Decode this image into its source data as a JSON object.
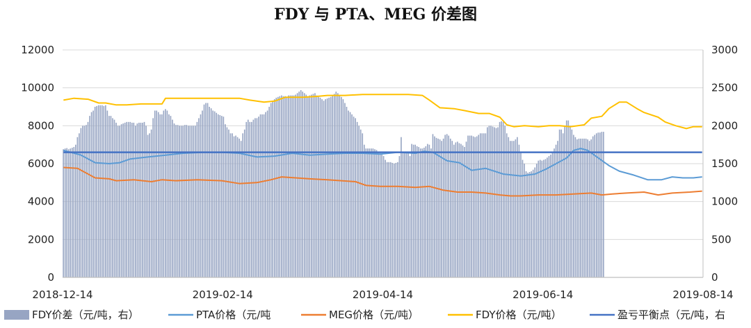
{
  "chart_data": {
    "type": "bar+line",
    "title": "FDY 与 PTA、MEG 价差图",
    "x_ticks": [
      "2018-12-14",
      "2019-02-14",
      "2019-04-14",
      "2019-06-14",
      "2019-08-14"
    ],
    "y_left": {
      "min": 0,
      "max": 12000,
      "ticks": [
        0,
        2000,
        4000,
        6000,
        8000,
        10000,
        12000
      ]
    },
    "y_right": {
      "min": 0,
      "max": 3000,
      "ticks": [
        0,
        500,
        1000,
        1500,
        2000,
        2500,
        3000
      ]
    },
    "grid": true,
    "legend_position": "bottom",
    "series": [
      {
        "name": "FDY价差（元/吨，右）",
        "type": "bar",
        "axis": "right",
        "color": "#97a5c3",
        "values": [
          1690,
          1700,
          1705,
          1690,
          1700,
          1710,
          1720,
          1750,
          1850,
          1900,
          1970,
          2000,
          2000,
          2010,
          2050,
          2130,
          2180,
          2200,
          2250,
          2260,
          2270,
          2270,
          2270,
          2260,
          2270,
          2200,
          2130,
          2130,
          2100,
          2080,
          2040,
          2000,
          2000,
          2020,
          2030,
          2040,
          2050,
          2050,
          2050,
          2040,
          2040,
          2000,
          2030,
          2040,
          2040,
          2040,
          2050,
          2000,
          1880,
          1900,
          1950,
          2100,
          2200,
          2200,
          2180,
          2150,
          2150,
          2200,
          2220,
          2200,
          2150,
          2130,
          2080,
          2030,
          2010,
          2010,
          2000,
          2000,
          2000,
          2010,
          2010,
          2000,
          2000,
          2000,
          2000,
          2000,
          2050,
          2100,
          2150,
          2200,
          2280,
          2300,
          2300,
          2250,
          2230,
          2200,
          2190,
          2170,
          2150,
          2140,
          2130,
          2120,
          2020,
          1980,
          1950,
          1900,
          1900,
          1860,
          1870,
          1850,
          1830,
          1800,
          1900,
          1950,
          2050,
          2080,
          2050,
          2050,
          2080,
          2100,
          2100,
          2120,
          2150,
          2150,
          2150,
          2180,
          2200,
          2250,
          2300,
          2320,
          2350,
          2370,
          2380,
          2390,
          2400,
          2390,
          2390,
          2380,
          2400,
          2400,
          2400,
          2400,
          2410,
          2430,
          2450,
          2470,
          2450,
          2430,
          2410,
          2390,
          2400,
          2410,
          2420,
          2430,
          2400,
          2380,
          2370,
          2350,
          2330,
          2350,
          2360,
          2370,
          2380,
          2400,
          2420,
          2450,
          2430,
          2400,
          2380,
          2350,
          2300,
          2250,
          2200,
          2180,
          2150,
          2120,
          2100,
          2050,
          2000,
          1950,
          1900,
          1750,
          1700,
          1700,
          1700,
          1700,
          1700,
          1690,
          1680,
          1660,
          1640,
          1620,
          1600,
          1550,
          1520,
          1520,
          1520,
          1510,
          1500,
          1510,
          1520,
          1600,
          1850,
          1640,
          1650,
          1650,
          1650,
          1600,
          1760,
          1750,
          1750,
          1730,
          1720,
          1700,
          1700,
          1710,
          1730,
          1760,
          1750,
          1700,
          1890,
          1860,
          1840,
          1830,
          1820,
          1800,
          1830,
          1880,
          1890,
          1870,
          1830,
          1800,
          1750,
          1780,
          1790,
          1770,
          1760,
          1740,
          1720,
          1790,
          1870,
          1870,
          1870,
          1860,
          1850,
          1860,
          1880,
          1900,
          1900,
          1900,
          1900,
          1980,
          2000,
          2000,
          1990,
          1980,
          1970,
          1980,
          2050,
          2060,
          2050,
          2000,
          1900,
          1850,
          1800,
          1800,
          1800,
          1820,
          1850,
          1750,
          1650,
          1550,
          1500,
          1400,
          1380,
          1390,
          1400,
          1420,
          1450,
          1500,
          1540,
          1550,
          1540,
          1550,
          1560,
          1580,
          1600,
          1620,
          1650,
          1700,
          1750,
          1800,
          1950,
          1950,
          1900,
          2000,
          2070,
          2070,
          2000,
          1950,
          1880,
          1850,
          1820,
          1830,
          1830,
          1830,
          1830,
          1830,
          1820,
          1800,
          1820,
          1860,
          1880,
          1900,
          1910,
          1910,
          1920,
          1920
        ]
      },
      {
        "name": "PTA价格（元/吨",
        "type": "line",
        "axis": "left",
        "color": "#5b9bd5",
        "points": [
          [
            0,
            6700
          ],
          [
            10,
            6450
          ],
          [
            18,
            6050
          ],
          [
            26,
            6000
          ],
          [
            32,
            6050
          ],
          [
            38,
            6250
          ],
          [
            48,
            6350
          ],
          [
            58,
            6450
          ],
          [
            68,
            6550
          ],
          [
            80,
            6600
          ],
          [
            90,
            6600
          ],
          [
            100,
            6550
          ],
          [
            110,
            6350
          ],
          [
            120,
            6400
          ],
          [
            130,
            6550
          ],
          [
            140,
            6450
          ],
          [
            150,
            6500
          ],
          [
            160,
            6550
          ],
          [
            170,
            6550
          ],
          [
            180,
            6500
          ],
          [
            190,
            6600
          ],
          [
            200,
            6550
          ],
          [
            205,
            6650
          ],
          [
            210,
            6600
          ],
          [
            218,
            6150
          ],
          [
            225,
            6050
          ],
          [
            232,
            5650
          ],
          [
            240,
            5750
          ],
          [
            250,
            5450
          ],
          [
            260,
            5350
          ],
          [
            268,
            5450
          ],
          [
            274,
            5700
          ],
          [
            280,
            6000
          ],
          [
            286,
            6300
          ],
          [
            290,
            6700
          ],
          [
            294,
            6800
          ],
          [
            298,
            6700
          ],
          [
            304,
            6300
          ],
          [
            310,
            5900
          ],
          [
            316,
            5600
          ],
          [
            324,
            5400
          ],
          [
            332,
            5150
          ],
          [
            340,
            5150
          ],
          [
            346,
            5300
          ],
          [
            352,
            5250
          ],
          [
            358,
            5250
          ],
          [
            363,
            5300
          ]
        ]
      },
      {
        "name": "MEG价格（元/吨）",
        "type": "line",
        "axis": "left",
        "color": "#ed7d31",
        "points": [
          [
            0,
            5800
          ],
          [
            8,
            5750
          ],
          [
            14,
            5450
          ],
          [
            18,
            5250
          ],
          [
            26,
            5200
          ],
          [
            30,
            5100
          ],
          [
            40,
            5150
          ],
          [
            50,
            5050
          ],
          [
            56,
            5150
          ],
          [
            64,
            5100
          ],
          [
            76,
            5150
          ],
          [
            90,
            5100
          ],
          [
            100,
            4950
          ],
          [
            110,
            5000
          ],
          [
            118,
            5150
          ],
          [
            124,
            5300
          ],
          [
            132,
            5250
          ],
          [
            140,
            5200
          ],
          [
            150,
            5150
          ],
          [
            158,
            5100
          ],
          [
            166,
            5050
          ],
          [
            172,
            4850
          ],
          [
            180,
            4800
          ],
          [
            190,
            4800
          ],
          [
            200,
            4750
          ],
          [
            208,
            4800
          ],
          [
            216,
            4600
          ],
          [
            224,
            4500
          ],
          [
            232,
            4500
          ],
          [
            240,
            4450
          ],
          [
            248,
            4350
          ],
          [
            254,
            4300
          ],
          [
            260,
            4300
          ],
          [
            270,
            4350
          ],
          [
            280,
            4350
          ],
          [
            290,
            4400
          ],
          [
            300,
            4450
          ],
          [
            306,
            4350
          ],
          [
            312,
            4400
          ],
          [
            320,
            4450
          ],
          [
            330,
            4500
          ],
          [
            338,
            4350
          ],
          [
            346,
            4450
          ],
          [
            356,
            4500
          ],
          [
            363,
            4550
          ]
        ]
      },
      {
        "name": "FDY价格（元/吨）",
        "type": "line",
        "axis": "left",
        "color": "#ffc000",
        "points": [
          [
            0,
            9350
          ],
          [
            6,
            9450
          ],
          [
            14,
            9400
          ],
          [
            20,
            9200
          ],
          [
            24,
            9200
          ],
          [
            30,
            9100
          ],
          [
            36,
            9100
          ],
          [
            44,
            9150
          ],
          [
            56,
            9150
          ],
          [
            58,
            9450
          ],
          [
            66,
            9450
          ],
          [
            78,
            9450
          ],
          [
            90,
            9450
          ],
          [
            100,
            9450
          ],
          [
            106,
            9350
          ],
          [
            114,
            9250
          ],
          [
            120,
            9300
          ],
          [
            126,
            9500
          ],
          [
            136,
            9500
          ],
          [
            144,
            9550
          ],
          [
            150,
            9600
          ],
          [
            160,
            9600
          ],
          [
            170,
            9650
          ],
          [
            180,
            9650
          ],
          [
            188,
            9650
          ],
          [
            196,
            9650
          ],
          [
            204,
            9600
          ],
          [
            208,
            9350
          ],
          [
            214,
            8950
          ],
          [
            222,
            8900
          ],
          [
            228,
            8800
          ],
          [
            236,
            8650
          ],
          [
            242,
            8650
          ],
          [
            248,
            8450
          ],
          [
            252,
            8050
          ],
          [
            256,
            7950
          ],
          [
            262,
            8000
          ],
          [
            270,
            7950
          ],
          [
            276,
            8000
          ],
          [
            282,
            8000
          ],
          [
            288,
            7950
          ],
          [
            296,
            8050
          ],
          [
            300,
            8400
          ],
          [
            306,
            8500
          ],
          [
            310,
            8900
          ],
          [
            316,
            9250
          ],
          [
            320,
            9250
          ],
          [
            326,
            8900
          ],
          [
            330,
            8700
          ],
          [
            338,
            8450
          ],
          [
            342,
            8200
          ],
          [
            348,
            8000
          ],
          [
            354,
            7850
          ],
          [
            358,
            7950
          ],
          [
            363,
            7950
          ]
        ]
      },
      {
        "name": "盈亏平衡点（元/吨，右",
        "type": "line",
        "axis": "right",
        "color": "#4472c4",
        "points": [
          [
            0,
            1650
          ],
          [
            363,
            1650
          ]
        ]
      }
    ]
  }
}
